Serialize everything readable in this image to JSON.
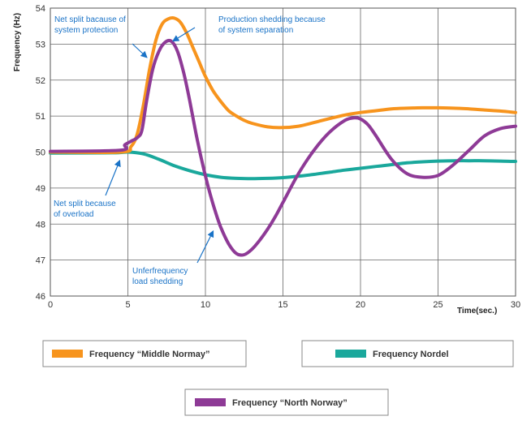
{
  "chart_data": {
    "type": "line",
    "xlabel": "Time(sec.)",
    "ylabel": "Frequency (Hz)",
    "xlim": [
      0,
      30
    ],
    "ylim": [
      46,
      54
    ],
    "xticks": [
      0,
      5,
      10,
      15,
      20,
      25,
      30
    ],
    "yticks": [
      46,
      47,
      48,
      49,
      50,
      51,
      52,
      53,
      54
    ],
    "grid": true,
    "series": [
      {
        "name": "Frequency “Middle Normay”",
        "color": "#f7941d",
        "x": [
          0,
          4.6,
          5.2,
          5.6,
          6.0,
          6.4,
          6.8,
          7.2,
          7.6,
          8.0,
          8.4,
          8.8,
          9.2,
          9.6,
          10.0,
          10.5,
          11.0,
          11.5,
          12.0,
          12.5,
          13.0,
          14.0,
          15.0,
          16.0,
          17.0,
          18.0,
          19.0,
          20.0,
          21.0,
          22.0,
          23.0,
          24.0,
          25.0,
          26.0,
          27.0,
          28.0,
          29.0,
          30.0
        ],
        "y": [
          50.0,
          50.0,
          50.15,
          50.5,
          51.3,
          52.3,
          53.1,
          53.55,
          53.7,
          53.72,
          53.6,
          53.3,
          52.9,
          52.5,
          52.1,
          51.7,
          51.4,
          51.15,
          51.0,
          50.88,
          50.8,
          50.7,
          50.68,
          50.72,
          50.82,
          50.93,
          51.03,
          51.1,
          51.15,
          51.2,
          51.22,
          51.23,
          51.23,
          51.22,
          51.2,
          51.17,
          51.14,
          51.1
        ]
      },
      {
        "name": "Frequency Nordel",
        "color": "#1aa89c",
        "x": [
          0,
          4.0,
          5.0,
          6.0,
          7.0,
          8.0,
          9.0,
          10.0,
          11.0,
          12.0,
          13.0,
          14.0,
          15.0,
          16.0,
          17.0,
          18.0,
          19.0,
          20.0,
          21.0,
          22.0,
          23.0,
          24.0,
          25.0,
          26.0,
          27.0,
          28.0,
          29.0,
          30.0
        ],
        "y": [
          49.97,
          49.98,
          50.0,
          49.95,
          49.8,
          49.62,
          49.48,
          49.37,
          49.3,
          49.27,
          49.26,
          49.27,
          49.29,
          49.33,
          49.38,
          49.44,
          49.5,
          49.55,
          49.6,
          49.65,
          49.7,
          49.73,
          49.75,
          49.76,
          49.76,
          49.76,
          49.75,
          49.74
        ]
      },
      {
        "name": "Frequency “North Norway”",
        "color": "#8e3a96",
        "x": [
          0,
          4.5,
          4.8,
          5.2,
          5.6,
          5.9,
          6.2,
          6.6,
          7.0,
          7.4,
          7.8,
          8.2,
          8.6,
          9.0,
          9.4,
          9.8,
          10.2,
          10.6,
          11.0,
          11.5,
          12.0,
          12.5,
          13.0,
          13.5,
          14.0,
          14.5,
          15.0,
          16.0,
          17.0,
          18.0,
          19.0,
          19.6,
          20.0,
          20.5,
          21.0,
          22.0,
          23.0,
          24.0,
          25.0,
          26.0,
          27.0,
          28.0,
          29.0,
          30.0
        ],
        "y": [
          50.02,
          50.05,
          50.2,
          50.3,
          50.4,
          50.6,
          51.4,
          52.3,
          52.8,
          53.05,
          53.08,
          52.8,
          52.2,
          51.4,
          50.5,
          49.7,
          49.0,
          48.4,
          47.9,
          47.45,
          47.18,
          47.15,
          47.3,
          47.55,
          47.85,
          48.2,
          48.6,
          49.4,
          50.05,
          50.55,
          50.88,
          50.95,
          50.92,
          50.75,
          50.45,
          49.8,
          49.4,
          49.3,
          49.35,
          49.65,
          50.05,
          50.45,
          50.65,
          50.72
        ]
      }
    ],
    "annotations": [
      {
        "lines": [
          "Net split bacause of",
          "system protection"
        ]
      },
      {
        "lines": [
          "Production shedding because",
          "of system separation"
        ]
      },
      {
        "lines": [
          "Net split because",
          "of overload"
        ]
      },
      {
        "lines": [
          "Unferfrequency",
          "load shedding"
        ]
      }
    ]
  }
}
